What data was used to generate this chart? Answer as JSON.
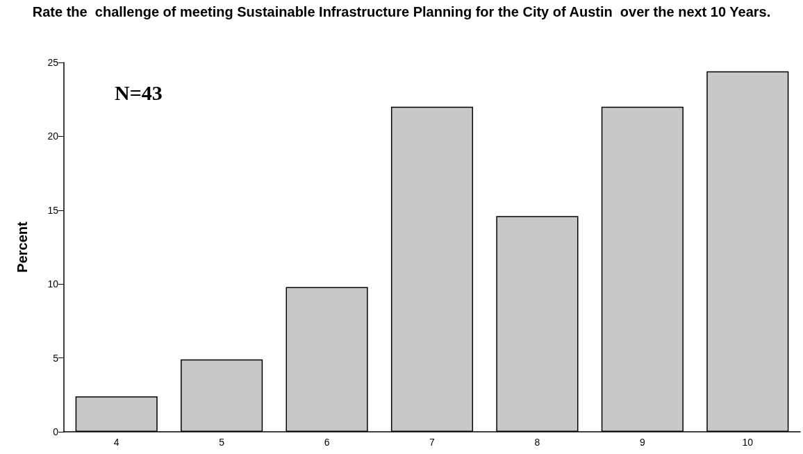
{
  "chart_data": {
    "type": "bar",
    "title": "Rate the  challenge of meeting Sustainable Infrastructure Planning for the City of Austin  over the next 10 Years.",
    "ylabel": "Percent",
    "categories": [
      "4",
      "5",
      "6",
      "7",
      "8",
      "9",
      "10"
    ],
    "values": [
      2.4,
      4.9,
      9.8,
      22,
      14.6,
      22,
      24.4
    ],
    "color": "#c8c8c8",
    "ylim": [
      0,
      25
    ],
    "yticks": [
      0,
      5,
      10,
      15,
      20,
      25
    ],
    "grid": false,
    "annotations": [
      "N=43"
    ]
  }
}
